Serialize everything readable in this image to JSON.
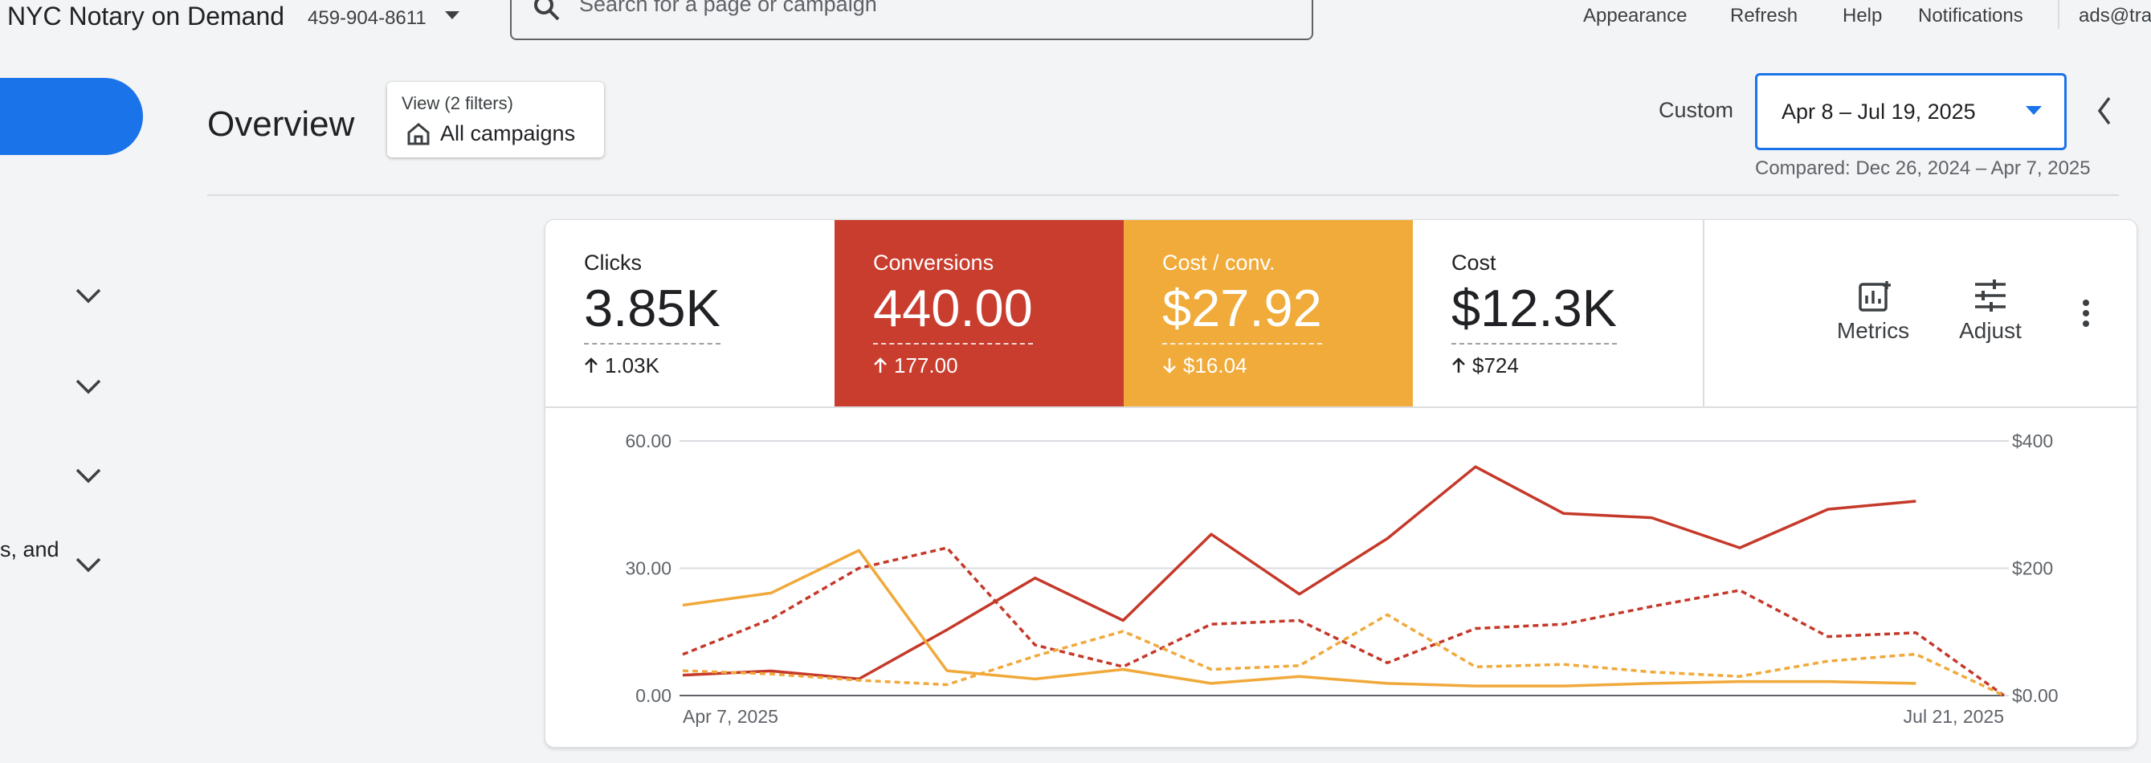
{
  "header": {
    "account": "NYC Notary on Demand",
    "phone": "459-904-8611",
    "search_placeholder": "Search for a page or campaign",
    "nav": [
      "Appearance",
      "Refresh",
      "Help",
      "Notifications"
    ],
    "user": "ads@tra"
  },
  "sidebar": {
    "text": "s, and"
  },
  "overview": {
    "title": "Overview",
    "filter_label": "View (2 filters)",
    "filter_value": "All campaigns",
    "range_mode": "Custom",
    "date_range": "Apr 8 – Jul 19, 2025",
    "compared": "Compared: Dec 26, 2024 – Apr 7, 2025"
  },
  "scorecards": [
    {
      "label": "Clicks",
      "value": "3.85K",
      "delta": "1.03K",
      "trend": "up",
      "color": "#ffffff"
    },
    {
      "label": "Conversions",
      "value": "440.00",
      "delta": "177.00",
      "trend": "up",
      "color": "#c83d2e"
    },
    {
      "label": "Cost / conv.",
      "value": "$27.92",
      "delta": "$16.04",
      "trend": "down",
      "color": "#f0ab3a"
    },
    {
      "label": "Cost",
      "value": "$12.3K",
      "delta": "$724",
      "trend": "up",
      "color": "#ffffff"
    }
  ],
  "tools": [
    "Metrics",
    "Adjust"
  ],
  "chart_data": {
    "type": "line",
    "categories": [
      "Apr 7, 2025",
      null,
      null,
      null,
      null,
      null,
      null,
      null,
      null,
      null,
      null,
      null,
      null,
      null,
      null,
      "Jul 21, 2025"
    ],
    "series": [
      {
        "color": "#c5392a",
        "dashed": false,
        "values": [
          4.8,
          5.8,
          3.9,
          15.5,
          27.7,
          17.7,
          38,
          23.9,
          37,
          53.9,
          42.9,
          41.9,
          34.8,
          43.9,
          45.8,
          null
        ]
      },
      {
        "color": "#c5392a",
        "dashed": true,
        "values": [
          9.7,
          18,
          30,
          34.8,
          11.9,
          6.8,
          16.8,
          17.7,
          7.7,
          15.8,
          16.8,
          21,
          24.8,
          13.9,
          14.8,
          0
        ]
      },
      {
        "color": "#f0a93a",
        "dashed": false,
        "axis": "y2",
        "values": [
          142,
          161,
          228,
          39,
          26,
          41,
          19,
          30,
          19,
          15,
          15,
          19,
          22,
          22,
          19,
          null
        ]
      },
      {
        "color": "#f0a93a",
        "dashed": true,
        "axis": "y2",
        "values": [
          39,
          34,
          24,
          17,
          62,
          101,
          41,
          47,
          127,
          45,
          49,
          37,
          30,
          54,
          65,
          0
        ]
      }
    ],
    "ylim": [
      0,
      60
    ],
    "yticks": [
      {
        "value": 0,
        "label": "0.00"
      },
      {
        "value": 30,
        "label": "30.00"
      },
      {
        "value": 60,
        "label": "60.00"
      }
    ],
    "y2lim": [
      0,
      400
    ],
    "y2ticks": [
      {
        "value": 0,
        "label": "$0.00"
      },
      {
        "value": 200,
        "label": "$200"
      },
      {
        "value": 400,
        "label": "$400"
      }
    ],
    "grid": true
  }
}
